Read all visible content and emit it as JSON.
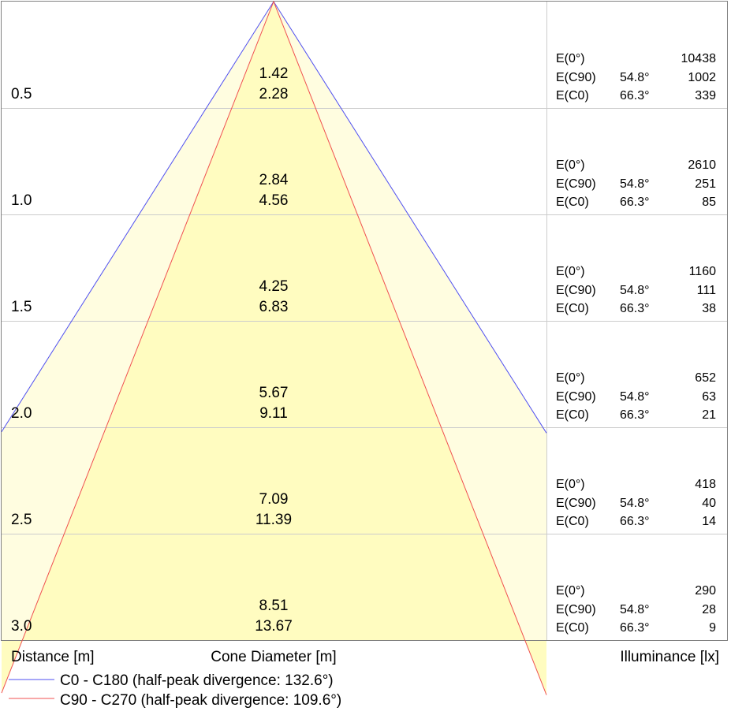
{
  "chart_data": {
    "type": "cone-diagram",
    "xlabel": "Distance [m]",
    "center_label": "Cone Diameter [m]",
    "right_label": "Illuminance [lx]",
    "legend": [
      {
        "name": "C0 - C180 (half-peak divergence: 132.6°)",
        "color": "#4f4ff0",
        "angle": 132.6
      },
      {
        "name": "C90 - C270 (half-peak divergence: 109.6°)",
        "color": "#f05050",
        "angle": 109.6
      }
    ],
    "rows": [
      {
        "distance": "0.5",
        "d1": "1.42",
        "d2": "2.28",
        "e0": "10438",
        "ec90": "1002",
        "ec0": "339"
      },
      {
        "distance": "1.0",
        "d1": "2.84",
        "d2": "4.56",
        "e0": "2610",
        "ec90": "251",
        "ec0": "85"
      },
      {
        "distance": "1.5",
        "d1": "4.25",
        "d2": "6.83",
        "e0": "1160",
        "ec90": "111",
        "ec0": "38"
      },
      {
        "distance": "2.0",
        "d1": "5.67",
        "d2": "9.11",
        "e0": "652",
        "ec90": "63",
        "ec0": "21"
      },
      {
        "distance": "2.5",
        "d1": "7.09",
        "d2": "11.39",
        "e0": "418",
        "ec90": "40",
        "ec0": "14"
      },
      {
        "distance": "3.0",
        "d1": "8.51",
        "d2": "13.67",
        "e0": "290",
        "ec90": "28",
        "ec0": "9"
      }
    ],
    "labels": {
      "e0": "E(0°)",
      "ec90": "E(C90)",
      "ec0": "E(C0)"
    },
    "angles": {
      "ec90": "54.8°",
      "ec0": "66.3°"
    },
    "colors": {
      "fill_outer": "#fffde0",
      "fill_inner": "#fffcc0",
      "grid": "#cccccc",
      "border": "#808080"
    }
  }
}
